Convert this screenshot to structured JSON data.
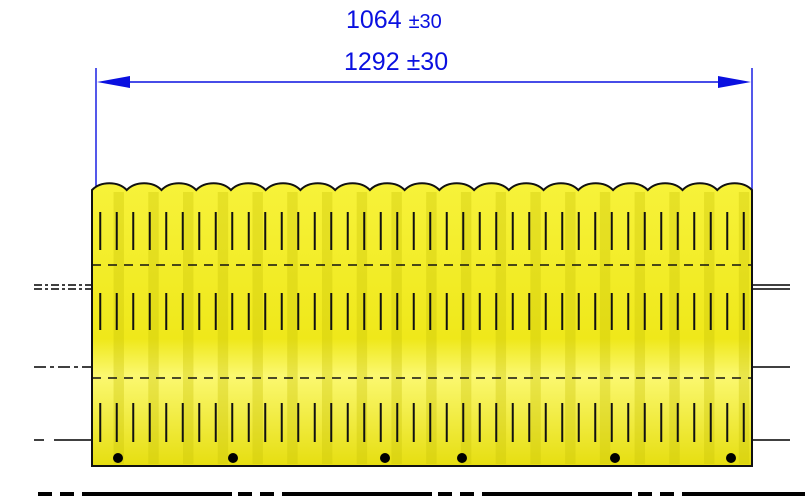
{
  "dimensions": {
    "primary_value": "1064",
    "primary_tolerance": "±30",
    "secondary_value": "1292",
    "secondary_tolerance": "±30",
    "color": "#0a10e0"
  },
  "sheet": {
    "fill_color": "#f4ee1c",
    "outline_color": "#111111",
    "corrugation_count": 19,
    "perforation_rows": 3,
    "fastener_holes": 6
  }
}
